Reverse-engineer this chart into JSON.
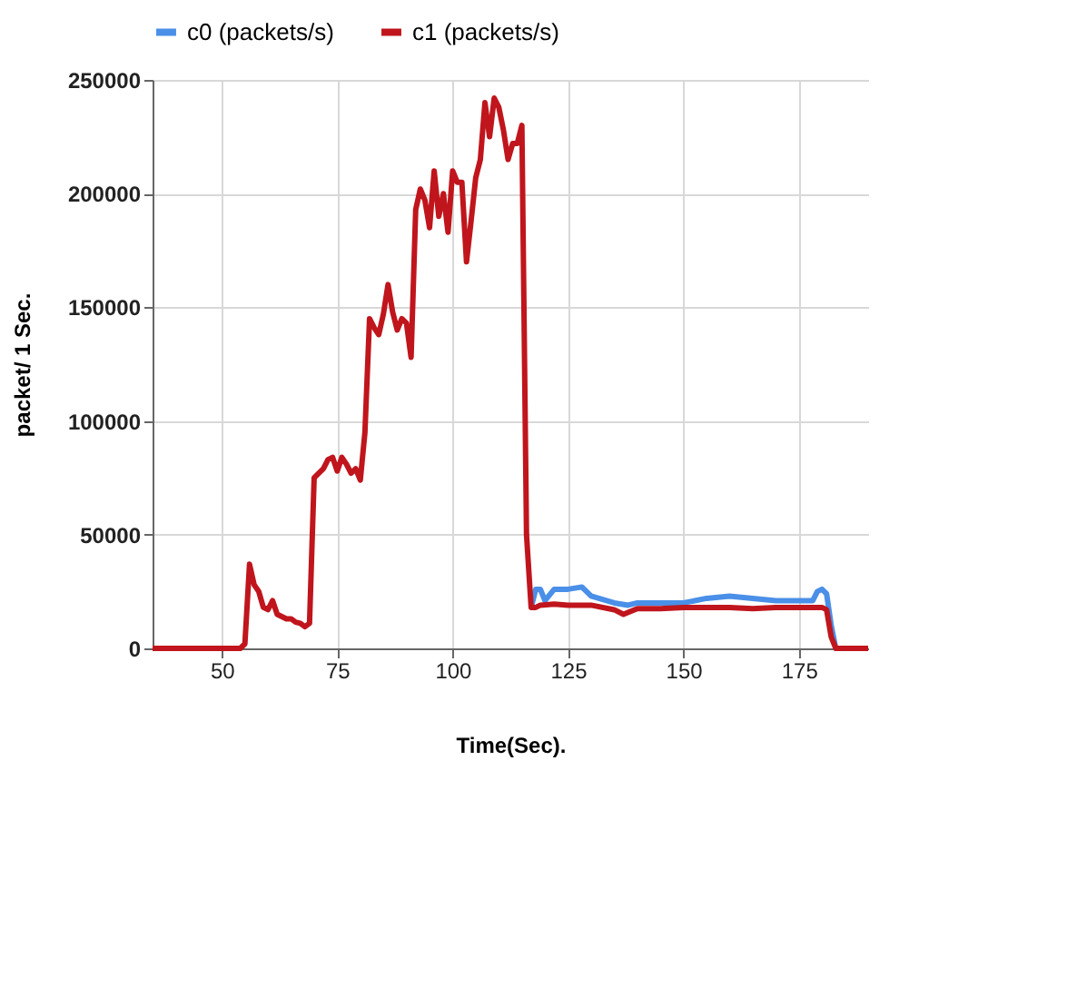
{
  "chart_data": {
    "type": "line",
    "xlabel": "Time(Sec).",
    "ylabel": "packet/ 1 Sec.",
    "xlim": [
      35,
      190
    ],
    "xticks": [
      50,
      75,
      100,
      125,
      150,
      175
    ],
    "ylim": [
      0,
      250000
    ],
    "yticks": [
      0,
      50000,
      100000,
      150000,
      200000,
      250000
    ],
    "grid": true,
    "legend": "top",
    "marker": "none",
    "line_style": "solid",
    "series": [
      {
        "name": "c0 (packets/s)",
        "color": "#4a8fe8",
        "x": [
          117,
          118,
          119,
          120,
          122,
          125,
          128,
          130,
          135,
          138,
          140,
          145,
          150,
          155,
          160,
          165,
          170,
          175,
          178,
          179,
          180,
          181,
          182,
          183,
          190
        ],
        "values": [
          18000,
          26000,
          26000,
          21000,
          26000,
          26000,
          27000,
          23000,
          20000,
          19000,
          20000,
          20000,
          20000,
          22000,
          23000,
          22000,
          21000,
          21000,
          21000,
          25000,
          26000,
          24000,
          10000,
          0,
          0
        ]
      },
      {
        "name": "c1 (packets/s)",
        "color": "#c0151c",
        "x": [
          35,
          40,
          45,
          50,
          54,
          55,
          56,
          57,
          58,
          59,
          60,
          61,
          62,
          63,
          64,
          65,
          66,
          67,
          68,
          69,
          70,
          71,
          72,
          73,
          74,
          75,
          76,
          77,
          78,
          79,
          80,
          81,
          82,
          83,
          84,
          85,
          86,
          87,
          88,
          89,
          90,
          91,
          92,
          93,
          94,
          95,
          96,
          97,
          98,
          99,
          100,
          101,
          102,
          103,
          104,
          105,
          106,
          107,
          108,
          109,
          110,
          111,
          112,
          113,
          114,
          115,
          116,
          117,
          118,
          119,
          122,
          125,
          130,
          135,
          137,
          140,
          145,
          150,
          155,
          160,
          165,
          170,
          175,
          180,
          181,
          182,
          183,
          190
        ],
        "values": [
          0,
          0,
          0,
          0,
          0,
          2000,
          37000,
          28000,
          25000,
          18000,
          17000,
          21000,
          15000,
          14000,
          13000,
          13000,
          11500,
          11000,
          9500,
          11000,
          75000,
          77000,
          79000,
          83000,
          84000,
          78000,
          84000,
          81000,
          77000,
          79000,
          74000,
          95000,
          145000,
          141000,
          138000,
          147000,
          160000,
          148000,
          140000,
          145000,
          143000,
          128000,
          193000,
          202000,
          197000,
          185000,
          210000,
          190000,
          200000,
          183000,
          210000,
          205000,
          205000,
          170000,
          188000,
          207000,
          215000,
          240000,
          225000,
          242000,
          238000,
          228000,
          215000,
          222000,
          222000,
          230000,
          50000,
          18000,
          18000,
          19000,
          19500,
          19000,
          19000,
          17000,
          15000,
          17500,
          17500,
          18000,
          18000,
          18000,
          17500,
          18000,
          18000,
          18000,
          17000,
          5000,
          0,
          0
        ]
      }
    ]
  }
}
